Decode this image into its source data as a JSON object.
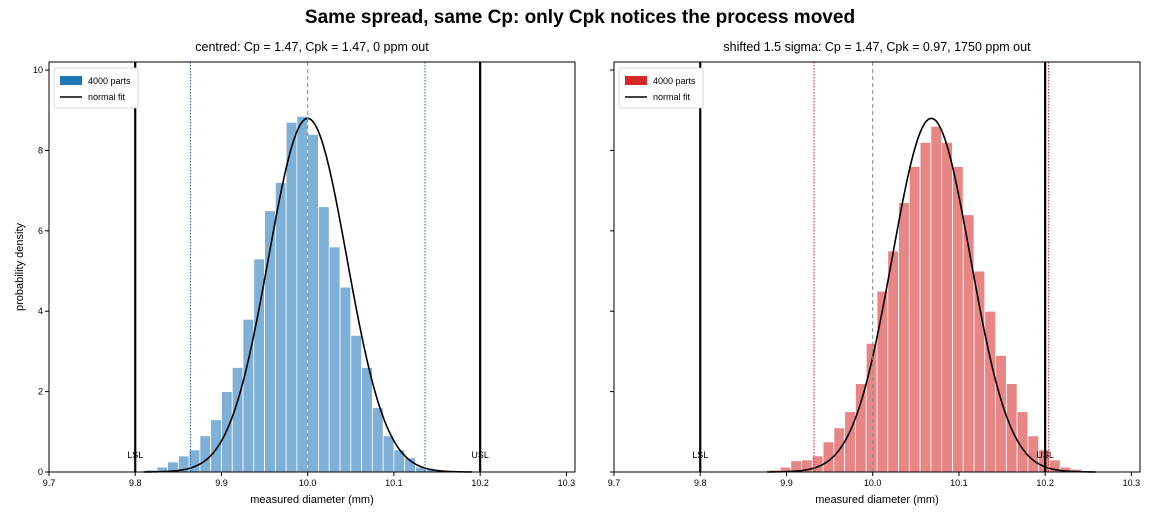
{
  "figure": {
    "title": "Same spread, same Cp: only Cpk notices the process moved"
  },
  "chart_data": [
    {
      "type": "bar",
      "title": "centred:  Cp = 1.47,  Cpk = 1.47,  0 ppm out",
      "xlabel": "measured diameter (mm)",
      "ylabel": "probability density",
      "xlim": [
        9.7,
        10.31
      ],
      "ylim": [
        0,
        10.2
      ],
      "xticks": [
        9.7,
        9.8,
        9.9,
        10.0,
        10.1,
        10.2,
        10.3
      ],
      "yticks": [
        0,
        2,
        4,
        6,
        8,
        10
      ],
      "bar_color": "#7eb0d8",
      "legend_color": "#1f77b4",
      "legend_position": "upper left",
      "legend": {
        "bars": "4000 parts",
        "fit": "normal fit"
      },
      "spec_limits": {
        "LSL": 9.8,
        "USL": 10.2
      },
      "spec_labels": {
        "lsl": "LSL",
        "usl": "USL"
      },
      "target": 10.0,
      "sigma_lines": [
        9.864,
        10.136
      ],
      "sigma_line_color": "#1f5f9f",
      "bins": {
        "start": 9.8,
        "width": 0.0125
      },
      "densities": [
        0.02,
        0.05,
        0.12,
        0.25,
        0.4,
        0.55,
        0.9,
        1.3,
        2.0,
        2.6,
        3.8,
        5.3,
        6.5,
        7.2,
        8.7,
        8.85,
        8.4,
        6.6,
        5.6,
        4.6,
        3.4,
        2.6,
        1.6,
        0.9,
        0.55,
        0.35,
        0.12,
        0.06,
        0.02
      ],
      "fit": {
        "mean": 10.0,
        "sd": 0.04535
      }
    },
    {
      "type": "bar",
      "title": "shifted 1.5 sigma:  Cp = 1.47,  Cpk = 0.97,  1750 ppm out",
      "xlabel": "measured diameter (mm)",
      "ylabel": "",
      "xlim": [
        9.7,
        10.31
      ],
      "ylim": [
        0,
        10.2
      ],
      "xticks": [
        9.7,
        9.8,
        9.9,
        10.0,
        10.1,
        10.2,
        10.3
      ],
      "yticks": [
        0,
        2,
        4,
        6,
        8,
        10
      ],
      "bar_color": "#e88585",
      "legend_color": "#d62728",
      "legend_position": "upper left",
      "legend": {
        "bars": "4000 parts",
        "fit": "normal fit"
      },
      "spec_limits": {
        "LSL": 9.8,
        "USL": 10.2
      },
      "spec_labels": {
        "lsl": "LSL",
        "usl": "USL"
      },
      "target": 10.0,
      "sigma_lines": [
        9.932,
        10.204
      ],
      "sigma_line_color": "#d62728",
      "bins": {
        "start": 9.8675,
        "width": 0.0125
      },
      "densities": [
        0.02,
        0.05,
        0.12,
        0.28,
        0.3,
        0.4,
        0.75,
        1.1,
        1.5,
        2.2,
        3.2,
        4.5,
        5.5,
        6.7,
        7.6,
        8.2,
        8.6,
        8.2,
        7.6,
        6.4,
        5.0,
        4.0,
        2.9,
        2.2,
        1.5,
        0.9,
        0.55,
        0.3,
        0.12,
        0.07,
        0.03,
        0.02
      ],
      "fit": {
        "mean": 10.068,
        "sd": 0.04535
      }
    }
  ]
}
